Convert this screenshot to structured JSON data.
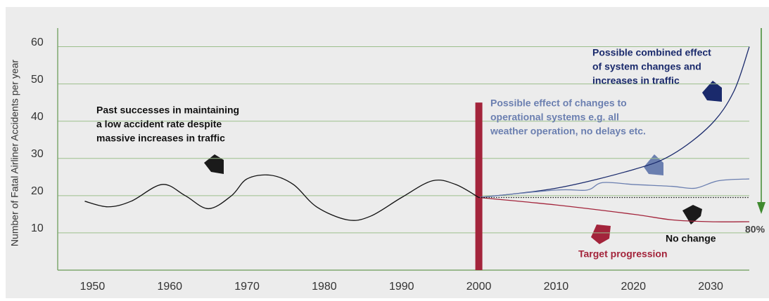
{
  "chart_data": {
    "type": "line",
    "y_label": "Number of Fatal Airliner Accidents per year",
    "xlim": [
      1945.5,
      2035
    ],
    "ylim": [
      0,
      65
    ],
    "xticks": [
      1950,
      1960,
      1970,
      1980,
      1990,
      2000,
      2010,
      2020,
      2030
    ],
    "yticks": [
      10,
      20,
      30,
      40,
      50,
      60
    ],
    "grid": true,
    "series": [
      {
        "color": "#111111",
        "style": "solid",
        "x": [
          1949,
          1952,
          1955,
          1959,
          1962,
          1965,
          1968,
          1970,
          1973,
          1976,
          1979,
          1983,
          1986,
          1990,
          1994,
          1997,
          2000
        ],
        "values": [
          18.5,
          17,
          18.5,
          23,
          20,
          16.5,
          20,
          24.5,
          25.5,
          23,
          17,
          13.5,
          14.5,
          19.5,
          24,
          23,
          19.5
        ]
      },
      {
        "color": "#1a2a6c",
        "style": "solid",
        "x": [
          2000,
          2010,
          2020,
          2025,
          2030,
          2033,
          2035
        ],
        "values": [
          19.5,
          22,
          27,
          31,
          39,
          48,
          60
        ]
      },
      {
        "color": "#6b7fb0",
        "style": "solid",
        "x": [
          2000,
          2010,
          2014,
          2016,
          2020,
          2025,
          2028,
          2031,
          2035
        ],
        "values": [
          19.5,
          21.5,
          21.5,
          23.5,
          23,
          22.5,
          22,
          24,
          24.5
        ]
      },
      {
        "color": "#a3243b",
        "style": "solid",
        "x": [
          2000,
          2010,
          2020,
          2025,
          2030,
          2035
        ],
        "values": [
          19.5,
          17.5,
          15,
          13.5,
          13,
          13
        ]
      },
      {
        "color": "#111111",
        "style": "dotted",
        "x": [
          2000,
          2035
        ],
        "values": [
          19.5,
          19.5
        ]
      }
    ],
    "marker_bar": {
      "x": 2000,
      "value": 45,
      "color": "#a3243b"
    },
    "annotations": [
      {
        "lines": [
          "Past successes in maintaining",
          "a low accident rate despite",
          "massive increases in traffic"
        ],
        "color": "#111111"
      },
      {
        "lines": [
          "Possible effect of changes to",
          "operational systems e.g. all",
          "weather operation, no delays etc."
        ],
        "color": "#6b7fb0"
      },
      {
        "lines": [
          "Possible combined effect",
          "of system changes and",
          "increases in traffic"
        ],
        "color": "#1a2a6c"
      },
      {
        "lines": [
          "No change"
        ],
        "color": "#111111"
      },
      {
        "lines": [
          "Target progression"
        ],
        "color": "#a3243b"
      },
      {
        "lines": [
          "80%"
        ],
        "color": "#444444"
      }
    ]
  }
}
